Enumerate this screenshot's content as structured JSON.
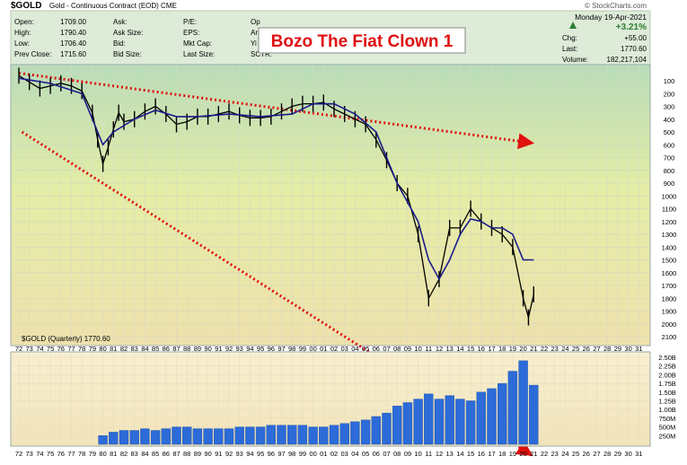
{
  "header": {
    "symbol": "$GOLD",
    "description": "Gold - Continuous Contract (EOD) CME",
    "watermark": "© StockCharts.com",
    "date": "Monday 19-Apr-2021",
    "left_fields": [
      {
        "label": "Open:",
        "value": "1709.00"
      },
      {
        "label": "High:",
        "value": "1790.40"
      },
      {
        "label": "Low:",
        "value": "1706.40"
      },
      {
        "label": "Prev Close:",
        "value": "1715.60"
      }
    ],
    "mid_fields": [
      {
        "label": "Ask:",
        "value": ""
      },
      {
        "label": "Ask Size:",
        "value": ""
      },
      {
        "label": "Bid:",
        "value": ""
      },
      {
        "label": "Bid Size:",
        "value": ""
      }
    ],
    "right_fields": [
      {
        "label": "P/E:",
        "value": ""
      },
      {
        "label": "EPS:",
        "value": ""
      },
      {
        "label": "Mkt Cap:",
        "value": ""
      },
      {
        "label": "Last Size:",
        "value": ""
      }
    ],
    "trunc_fields": [
      "Op",
      "Ar",
      "Yi",
      "SCTR:"
    ],
    "change_pct": "+3.21%",
    "quote_fields": [
      {
        "label": "Chg:",
        "value": "+55.00"
      },
      {
        "label": "Last:",
        "value": "1770.60"
      },
      {
        "label": "Volume:",
        "value": "182,217,104"
      }
    ]
  },
  "annotation": {
    "text": "Bozo The Fiat Clown 1"
  },
  "legend": {
    "text": "$GOLD (Quarterly) 1770.60"
  },
  "colors": {
    "price_line": "#000000",
    "moving_average": "#1a1a8c",
    "trendline": "#e01010",
    "volume": "#2c6bd8",
    "header_bg": "#ddebd8"
  },
  "chart_data": [
    {
      "type": "line",
      "title": "$GOLD (Quarterly)",
      "y_scale": "inverted",
      "ylim": [
        2100,
        0
      ],
      "y_ticks": [
        100,
        200,
        300,
        400,
        500,
        600,
        700,
        800,
        900,
        1000,
        1100,
        1200,
        1300,
        1400,
        1500,
        1600,
        1700,
        1800,
        1900,
        2000,
        2100
      ],
      "x_tick_labels": [
        "72",
        "73",
        "74",
        "75",
        "76",
        "77",
        "78",
        "79",
        "80",
        "81",
        "82",
        "83",
        "84",
        "85",
        "86",
        "87",
        "88",
        "89",
        "90",
        "91",
        "92",
        "93",
        "94",
        "95",
        "96",
        "97",
        "98",
        "99",
        "00",
        "01",
        "02",
        "03",
        "04",
        "05",
        "06",
        "07",
        "08",
        "09",
        "10",
        "11",
        "12",
        "13",
        "14",
        "15",
        "16",
        "17",
        "18",
        "19",
        "20",
        "21",
        "22",
        "23",
        "24",
        "25",
        "26",
        "27",
        "28",
        "29",
        "30",
        "31"
      ],
      "series": [
        {
          "x": [
            1972,
            1973,
            1974,
            1975,
            1976,
            1977,
            1978,
            1979,
            1979.5,
            1980,
            1980.5,
            1981,
            1981.5,
            1982,
            1983,
            1984,
            1985,
            1986,
            1987,
            1988,
            1989,
            1990,
            1991,
            1992,
            1993,
            1994,
            1995,
            1996,
            1997,
            1998,
            1999,
            2000,
            2001,
            2002,
            2003,
            2004,
            2005,
            2006,
            2007,
            2008,
            2009,
            2010,
            2011,
            2012,
            2013,
            2014,
            2015,
            2016,
            2017,
            2018,
            2019,
            2020,
            2020.5,
            2021
          ],
          "y": [
            60,
            110,
            160,
            140,
            120,
            140,
            180,
            350,
            560,
            750,
            620,
            480,
            350,
            420,
            400,
            340,
            300,
            360,
            440,
            420,
            380,
            380,
            360,
            340,
            370,
            390,
            390,
            380,
            340,
            300,
            280,
            280,
            270,
            320,
            360,
            400,
            440,
            560,
            720,
            900,
            1000,
            1300,
            1800,
            1650,
            1250,
            1250,
            1100,
            1200,
            1250,
            1300,
            1400,
            1800,
            1950,
            1770
          ]
        },
        {
          "name": "",
          "x": [
            1972,
            1975,
            1978,
            1979,
            1980,
            1981,
            1982,
            1983,
            1985,
            1987,
            1989,
            1992,
            1995,
            1998,
            2000,
            2002,
            2004,
            2006,
            2008,
            2010,
            2011,
            2012,
            2013,
            2014,
            2015,
            2016,
            2017,
            2018,
            2019,
            2020,
            2021
          ],
          "y": [
            80,
            120,
            200,
            400,
            600,
            500,
            450,
            400,
            330,
            380,
            380,
            360,
            380,
            360,
            280,
            280,
            360,
            500,
            900,
            1200,
            1500,
            1650,
            1500,
            1300,
            1180,
            1200,
            1250,
            1250,
            1300,
            1500,
            1500
          ]
        }
      ]
    },
    {
      "type": "bar",
      "title": "Volume",
      "y_scale": "linear",
      "ylim": [
        0,
        2500000000
      ],
      "y_ticks": [
        "250M",
        "500M",
        "750M",
        "1.00B",
        "1.25B",
        "1.50B",
        "1.75B",
        "2.00B",
        "2.25B",
        "2.50B"
      ],
      "x": [
        1980,
        1981,
        1982,
        1983,
        1984,
        1985,
        1986,
        1987,
        1988,
        1989,
        1990,
        1991,
        1992,
        1993,
        1994,
        1995,
        1996,
        1997,
        1998,
        1999,
        2000,
        2001,
        2002,
        2003,
        2004,
        2005,
        2006,
        2007,
        2008,
        2009,
        2010,
        2011,
        2012,
        2013,
        2014,
        2015,
        2016,
        2017,
        2018,
        2019,
        2020,
        2021
      ],
      "values": [
        0.25,
        0.35,
        0.4,
        0.4,
        0.45,
        0.4,
        0.45,
        0.5,
        0.5,
        0.45,
        0.45,
        0.45,
        0.45,
        0.5,
        0.5,
        0.5,
        0.55,
        0.55,
        0.55,
        0.55,
        0.5,
        0.5,
        0.55,
        0.6,
        0.65,
        0.7,
        0.8,
        0.9,
        1.1,
        1.2,
        1.3,
        1.45,
        1.3,
        1.4,
        1.3,
        1.25,
        1.5,
        1.6,
        1.75,
        2.1,
        2.4,
        1.7
      ]
    }
  ]
}
